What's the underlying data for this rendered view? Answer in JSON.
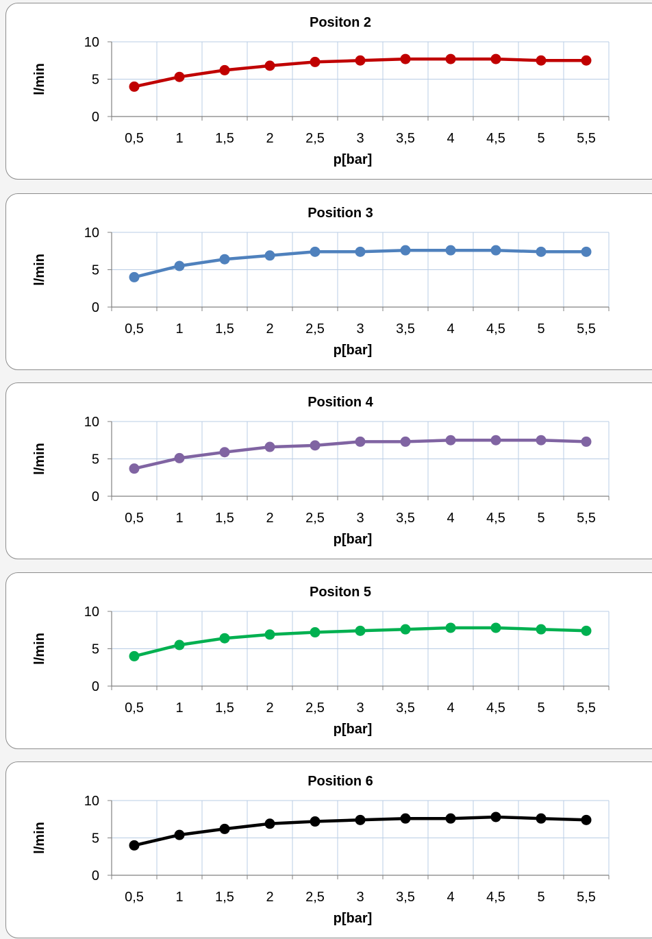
{
  "chart_data": [
    {
      "type": "line",
      "title": "Positon 2",
      "xlabel": "p[bar]",
      "ylabel": "l/min",
      "ylim": [
        0,
        10
      ],
      "yticks": [
        "0",
        "5",
        "10"
      ],
      "categories": [
        "0,5",
        "1",
        "1,5",
        "2",
        "2,5",
        "3",
        "3,5",
        "4",
        "4,5",
        "5",
        "5,5"
      ],
      "grid": true,
      "color": "#c00000",
      "values": [
        4.0,
        5.3,
        6.2,
        6.8,
        7.3,
        7.5,
        7.7,
        7.7,
        7.7,
        7.5,
        7.5
      ]
    },
    {
      "type": "line",
      "title": "Position 3",
      "xlabel": "p[bar]",
      "ylabel": "l/min",
      "ylim": [
        0,
        10
      ],
      "yticks": [
        "0",
        "5",
        "10"
      ],
      "categories": [
        "0,5",
        "1",
        "1,5",
        "2",
        "2,5",
        "3",
        "3,5",
        "4",
        "4,5",
        "5",
        "5,5"
      ],
      "grid": true,
      "color": "#4f81bd",
      "values": [
        4.0,
        5.5,
        6.4,
        6.9,
        7.4,
        7.4,
        7.6,
        7.6,
        7.6,
        7.4,
        7.4
      ]
    },
    {
      "type": "line",
      "title": "Position 4",
      "xlabel": "p[bar]",
      "ylabel": "l/min",
      "ylim": [
        0,
        10
      ],
      "yticks": [
        "0",
        "5",
        "10"
      ],
      "categories": [
        "0,5",
        "1",
        "1,5",
        "2",
        "2,5",
        "3",
        "3,5",
        "4",
        "4,5",
        "5",
        "5,5"
      ],
      "grid": true,
      "color": "#8064a2",
      "values": [
        3.7,
        5.1,
        5.9,
        6.6,
        6.8,
        7.3,
        7.3,
        7.5,
        7.5,
        7.5,
        7.3
      ]
    },
    {
      "type": "line",
      "title": "Positon 5",
      "xlabel": "p[bar]",
      "ylabel": "l/min",
      "ylim": [
        0,
        10
      ],
      "yticks": [
        "0",
        "5",
        "10"
      ],
      "categories": [
        "0,5",
        "1",
        "1,5",
        "2",
        "2,5",
        "3",
        "3,5",
        "4",
        "4,5",
        "5",
        "5,5"
      ],
      "grid": true,
      "color": "#00b050",
      "values": [
        4.0,
        5.5,
        6.4,
        6.9,
        7.2,
        7.4,
        7.6,
        7.8,
        7.8,
        7.6,
        7.4
      ]
    },
    {
      "type": "line",
      "title": "Position 6",
      "xlabel": "p[bar]",
      "ylabel": "l/min",
      "ylim": [
        0,
        10
      ],
      "yticks": [
        "0",
        "5",
        "10"
      ],
      "categories": [
        "0,5",
        "1",
        "1,5",
        "2",
        "2,5",
        "3",
        "3,5",
        "4",
        "4,5",
        "5",
        "5,5"
      ],
      "grid": true,
      "color": "#000000",
      "values": [
        4.0,
        5.4,
        6.2,
        6.9,
        7.2,
        7.4,
        7.6,
        7.6,
        7.8,
        7.6,
        7.4
      ]
    }
  ]
}
